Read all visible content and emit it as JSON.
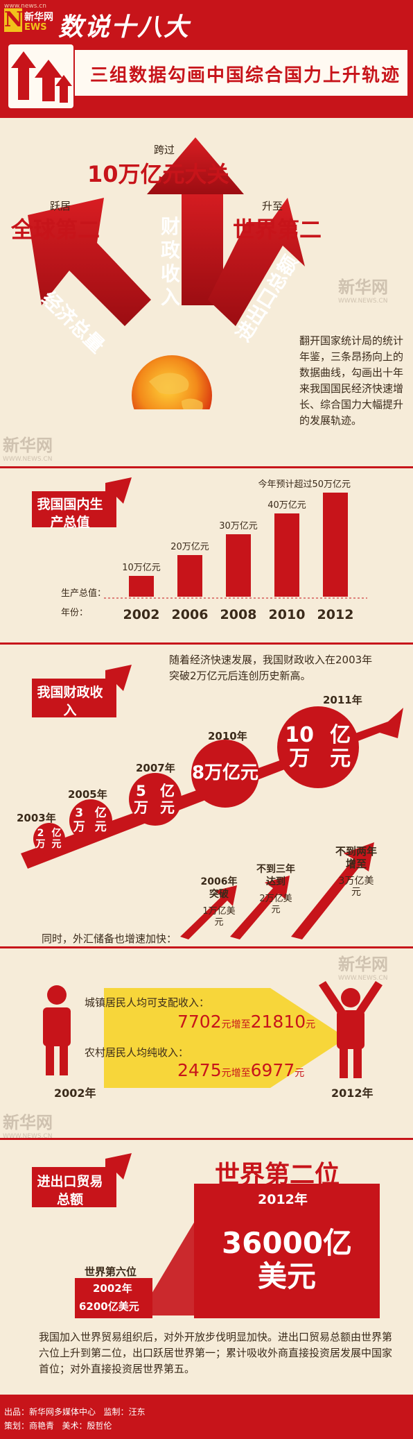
{
  "header": {
    "site_url": "www.news.cn",
    "logo_text": "新华网",
    "series_title": "数说十八大",
    "title": "三组数据勾画中国综合国力上升轨迹"
  },
  "watermark": {
    "text": "新华网",
    "sub": "WWW.NEWS.CN"
  },
  "overview": {
    "left": {
      "prefix": "跃居",
      "headline": "全球第二",
      "arrow_label": "经济总量"
    },
    "center": {
      "prefix": "跨过",
      "headline": "10万亿元大关",
      "arrow_label": "财政收入"
    },
    "right": {
      "prefix": "升至",
      "headline": "世界第二",
      "arrow_label": "进出口总额"
    },
    "intro": "翻开国家统计局的统计年鉴，三条昂扬向上的数据曲线，勾画出十年来我国国民经济快速增长、综合国力大幅提升的发展轨迹。"
  },
  "gdp": {
    "label": "我国国内生产总值",
    "value_label": "生产总值：",
    "year_label": "年份：",
    "note": "今年预计超过50万亿元"
  },
  "fiscal": {
    "label": "我国财政收入",
    "intro": "随着经济快速发展，我国财政收入在2003年突破2万亿元后连创历史新高。",
    "items": [
      {
        "year": "2003年",
        "value": "2万亿元"
      },
      {
        "year": "2005年",
        "value": "3万亿元"
      },
      {
        "year": "2007年",
        "value": "5万亿元"
      },
      {
        "year": "2010年",
        "value": "8万亿元"
      },
      {
        "year": "2011年",
        "value": "10万亿元"
      }
    ]
  },
  "forex": {
    "intro": "同时，外汇储备也增速加快：",
    "items": [
      {
        "caption": "2006年突破",
        "value": "1万亿美元"
      },
      {
        "caption": "不到三年达到",
        "value": "2万亿美元"
      },
      {
        "caption": "不到两年增至",
        "value": "3万亿美元"
      }
    ]
  },
  "income": {
    "urban": {
      "label": "城镇居民人均可支配收入：",
      "from": "7702",
      "mid": "增至",
      "to": "21810",
      "unit": "元"
    },
    "rural": {
      "label": "农村居民人均纯收入：",
      "from": "2475",
      "mid": "增至",
      "to": "6977",
      "unit": "元"
    },
    "year_start": "2002年",
    "year_end": "2012年"
  },
  "trade": {
    "label": "进出口贸易总额",
    "rank_2012": "世界第二位",
    "year_2012": "2012年",
    "value_2012_line1": "36000亿",
    "value_2012_line2": "美元",
    "rank_2002": "世界第六位",
    "year_2002": "2002年",
    "value_2002": "6200亿美元",
    "summary": "我国加入世界贸易组织后，对外开放步伐明显加快。进出口贸易总额由世界第六位上升到第二位，出口跃居世界第一；累计吸收外商直接投资居发展中国家首位；对外直接投资居世界第五。"
  },
  "footer": {
    "producer": "出品：新华网多媒体中心",
    "supervisor": "监制：汪东",
    "planner": "策划：商艳青",
    "art": "美术：殷哲伦"
  },
  "chart_data": {
    "type": "bar",
    "categories": [
      "2002",
      "2006",
      "2008",
      "2010",
      "2012"
    ],
    "values": [
      10,
      20,
      30,
      40,
      50
    ],
    "data_labels": [
      "10万亿元",
      "20万亿元",
      "30万亿元",
      "40万亿元",
      "今年预计超过50万亿元"
    ],
    "ylabel": "生产总值：",
    "xlabel": "年份：",
    "ylim": [
      0,
      50
    ],
    "color": "#c7141a"
  }
}
